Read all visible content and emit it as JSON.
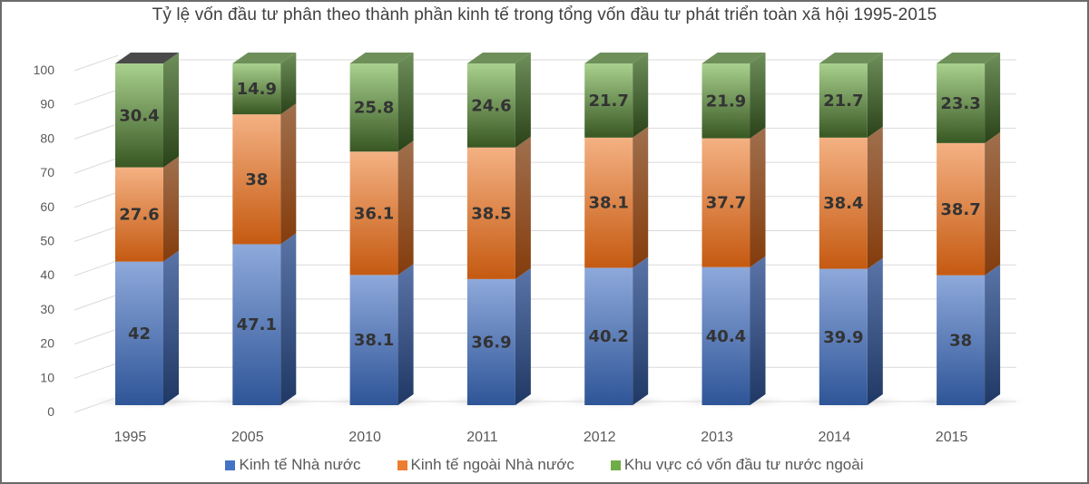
{
  "chart_data": {
    "type": "bar",
    "stacked": true,
    "style": "3d-column",
    "title": "Tỷ lệ vốn đầu tư phân theo thành phần kinh tế trong tổng vốn đầu tư phát triển toàn xã hội 1995-2015",
    "xlabel": "",
    "ylabel": "",
    "ylim": [
      0,
      100
    ],
    "yticks": [
      0,
      10,
      20,
      30,
      40,
      50,
      60,
      70,
      80,
      90,
      100
    ],
    "grid": true,
    "legend_position": "bottom",
    "categories": [
      "1995",
      "2005",
      "2010",
      "2011",
      "2012",
      "2013",
      "2014",
      "2015"
    ],
    "series": [
      {
        "name": "Kinh tế Nhà nước",
        "color": "#4472C4",
        "values": [
          42,
          47.1,
          38.1,
          36.9,
          40.2,
          40.4,
          39.9,
          38
        ]
      },
      {
        "name": "Kinh tế ngoài Nhà nước",
        "color": "#ED7D31",
        "values": [
          27.6,
          38,
          36.1,
          38.5,
          38.1,
          37.7,
          38.4,
          38.7
        ]
      },
      {
        "name": "Khu vực có vốn đầu tư nước ngoài",
        "color": "#70AD47",
        "values": [
          30.4,
          14.9,
          25.8,
          24.6,
          21.7,
          21.9,
          21.7,
          23.3
        ]
      }
    ],
    "labels": {
      "s0": [
        "42",
        "47.1",
        "38.1",
        "36.9",
        "40.2",
        "40.4",
        "39.9",
        "38"
      ],
      "s1": [
        "27.6",
        "38",
        "36.1",
        "38.5",
        "38.1",
        "37.7",
        "38.4",
        "38.7"
      ],
      "s2": [
        "30.4",
        "14.9",
        "25.8",
        "24.6",
        "21.7",
        "21.9",
        "21.7",
        "23.3"
      ]
    }
  },
  "legend": [
    {
      "label": "Kinh tế Nhà nước",
      "color": "#4472C4"
    },
    {
      "label": "Kinh tế ngoài Nhà nước",
      "color": "#ED7D31"
    },
    {
      "label": "Khu vực có vốn đầu tư nước ngoài",
      "color": "#70AD47"
    }
  ]
}
